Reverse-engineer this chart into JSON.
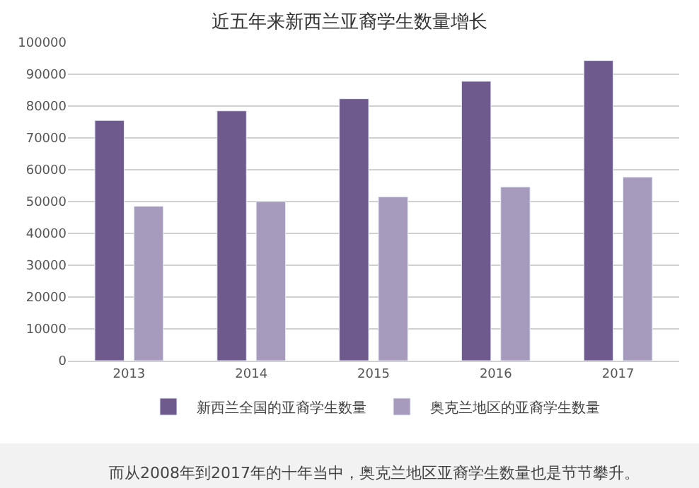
{
  "chart_data": {
    "type": "bar",
    "title": "近五年来新西兰亚裔学生数量增长",
    "categories": [
      "2013",
      "2014",
      "2015",
      "2016",
      "2017"
    ],
    "series": [
      {
        "name": "新西兰全国的亚裔学生数量",
        "color": "#6f5a8e",
        "values": [
          75500,
          78500,
          82300,
          87800,
          94300
        ]
      },
      {
        "name": "奥克兰地区的亚裔学生数量",
        "color": "#a69bbd",
        "values": [
          48500,
          50000,
          51500,
          54600,
          57700
        ]
      }
    ],
    "ylim": [
      0,
      100000
    ],
    "yticks": [
      0,
      10000,
      20000,
      30000,
      40000,
      50000,
      60000,
      70000,
      80000,
      90000,
      100000
    ],
    "grid": "y",
    "legend": "bottom",
    "annotations": [
      "而从2008年到2017年的十年当中，奥克兰地区亚裔学生数量也是节节攀升。"
    ]
  }
}
